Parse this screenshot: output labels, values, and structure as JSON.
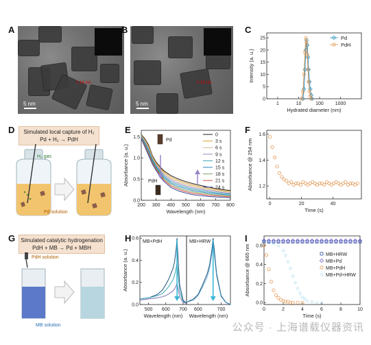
{
  "panels": {
    "A": {
      "letter": "A",
      "scale_label": "5 nm",
      "lattice_label": "0.19 nm"
    },
    "B": {
      "letter": "B",
      "scale_label": "5 nm",
      "lattice_label": "0.19 nm"
    },
    "C": {
      "letter": "C"
    },
    "D": {
      "letter": "D",
      "box_title": "Simulated local capture of H₂",
      "box_eq": "Pd + H₂ → PdH",
      "gas_label": "H₂ gas",
      "solution_label": "Pd solution"
    },
    "E": {
      "letter": "E",
      "pd_label": "Pd",
      "pdh_label": "PdH"
    },
    "F": {
      "letter": "F"
    },
    "G": {
      "letter": "G",
      "box_title": "Simulated catalytic hydrogenation",
      "box_eq": "PdH + MB → Pd + MBH",
      "pdh_solution_label": "PdH solution",
      "mb_solution_label": "MB solution"
    },
    "H": {
      "letter": "H",
      "left_label": "MB+PdH",
      "right_label": "MB+HRW"
    },
    "I": {
      "letter": "I"
    }
  },
  "watermark": "公众号 · 上海谱载仪器资讯",
  "chart_data": [
    {
      "panel": "C",
      "type": "line",
      "xlabel": "Hydrated diameter (nm)",
      "ylabel": "Intensity (a. u.)",
      "x_scale": "log",
      "xlim": [
        0.3,
        10000
      ],
      "ylim": [
        0,
        27
      ],
      "x_ticks": [
        1,
        10,
        100,
        1000
      ],
      "x_tick_labels": [
        "1",
        "10",
        "100",
        "1000"
      ],
      "y_ticks": [
        0,
        5,
        10,
        15,
        20,
        25
      ],
      "legend_position": "top-right",
      "series": [
        {
          "name": "Pd",
          "color": "#2a8fc4",
          "x": [
            16,
            18,
            20,
            22,
            24,
            26,
            28,
            30,
            33,
            36,
            40,
            44
          ],
          "y": [
            0,
            4,
            12,
            20,
            24,
            22,
            17,
            12,
            7,
            4,
            1.5,
            0
          ]
        },
        {
          "name": "PdH",
          "color": "#e39a55",
          "x": [
            14,
            16,
            18,
            20,
            22,
            24,
            26,
            28,
            30,
            33,
            36,
            40
          ],
          "y": [
            0,
            3,
            10,
            19,
            25,
            23,
            18,
            12,
            7,
            3,
            1,
            0
          ]
        }
      ]
    },
    {
      "panel": "E",
      "type": "line",
      "xlabel": "Wavelength (nm)",
      "ylabel": "Absorbance (a. u.)",
      "xlim": [
        200,
        800
      ],
      "ylim": [
        0,
        1.65
      ],
      "x_ticks": [
        200,
        300,
        400,
        500,
        600,
        700,
        800
      ],
      "y_ticks": [
        0.0,
        0.5,
        1.0,
        1.5
      ],
      "legend_position": "top-right",
      "series_names": [
        "0",
        "3 s",
        "6 s",
        "9 s",
        "12 s",
        "15 s",
        "18 s",
        "21 s",
        "24 s"
      ],
      "series_colors": [
        "#1c1c1c",
        "#e0a030",
        "#c9b98b",
        "#9b86c2",
        "#3aa6b0",
        "#2a7fbf",
        "#7aa35d",
        "#d64a3f",
        "#3b4fa0"
      ],
      "x": [
        200,
        225,
        250,
        275,
        300,
        350,
        400,
        450,
        500,
        550,
        600,
        650,
        700,
        750,
        800
      ],
      "base_curve": [
        1.55,
        1.45,
        1.3,
        1.05,
        0.9,
        0.7,
        0.58,
        0.5,
        0.44,
        0.39,
        0.35,
        0.31,
        0.28,
        0.25,
        0.23
      ],
      "end_curve": [
        1.45,
        1.25,
        1.05,
        0.85,
        0.7,
        0.45,
        0.3,
        0.22,
        0.17,
        0.13,
        0.11,
        0.09,
        0.08,
        0.07,
        0.06
      ]
    },
    {
      "panel": "F",
      "type": "scatter",
      "xlabel": "Time (s)",
      "ylabel": "Absorbance @ 254 nm",
      "xlim": [
        -2,
        58
      ],
      "ylim": [
        1.1,
        1.63
      ],
      "x_ticks": [
        0,
        20,
        40
      ],
      "y_ticks": [
        1.2,
        1.4,
        1.6
      ],
      "color": "#e39a55",
      "x": [
        0,
        1.5,
        3,
        4.5,
        6,
        7.5,
        9,
        10.5,
        12,
        13.5,
        15,
        16.5,
        18,
        19.5,
        21,
        22.5,
        24,
        25.5,
        27,
        28.5,
        30,
        31.5,
        33,
        34.5,
        36,
        37.5,
        39,
        40.5,
        42,
        43.5,
        45,
        46.5,
        48,
        49.5,
        51,
        52.5,
        54,
        55.5
      ],
      "y": [
        1.58,
        1.5,
        1.42,
        1.35,
        1.3,
        1.27,
        1.25,
        1.24,
        1.22,
        1.23,
        1.21,
        1.22,
        1.22,
        1.21,
        1.23,
        1.22,
        1.21,
        1.22,
        1.23,
        1.22,
        1.21,
        1.22,
        1.22,
        1.21,
        1.23,
        1.22,
        1.21,
        1.22,
        1.23,
        1.22,
        1.21,
        1.22,
        1.23,
        1.21,
        1.22,
        1.22,
        1.21,
        1.22
      ]
    },
    {
      "panel": "H",
      "type": "line",
      "xlabel": "Wavelength (nm)",
      "ylabel": "Absorbance (a. u.)",
      "subplots": [
        {
          "label": "MB+PdH",
          "xlim": [
            450,
            720
          ],
          "ylim": [
            0,
            0.62
          ],
          "x_ticks": [
            500,
            600,
            700
          ],
          "y_ticks": [
            0.0,
            0.2,
            0.4,
            0.6
          ],
          "x": [
            450,
            500,
            550,
            580,
            600,
            620,
            640,
            650,
            660,
            665,
            670,
            680,
            700,
            720
          ],
          "series": [
            {
              "color": "#1a4f7a",
              "y": [
                0.05,
                0.06,
                0.09,
                0.13,
                0.18,
                0.24,
                0.32,
                0.38,
                0.5,
                0.6,
                0.45,
                0.18,
                0.04,
                0.01
              ]
            },
            {
              "color": "#3aa6b0",
              "y": [
                0.05,
                0.06,
                0.08,
                0.1,
                0.13,
                0.17,
                0.22,
                0.26,
                0.33,
                0.38,
                0.3,
                0.12,
                0.03,
                0.01
              ]
            },
            {
              "color": "#7d6fb5",
              "y": [
                0.04,
                0.05,
                0.06,
                0.07,
                0.08,
                0.1,
                0.12,
                0.14,
                0.17,
                0.19,
                0.15,
                0.07,
                0.02,
                0.01
              ]
            }
          ]
        },
        {
          "label": "MB+HRW",
          "xlim": [
            550,
            740
          ],
          "ylim": [
            0,
            0.62
          ],
          "x_ticks": [
            600,
            700
          ],
          "x": [
            550,
            580,
            600,
            620,
            640,
            650,
            660,
            665,
            670,
            680,
            700,
            720,
            740
          ],
          "series": [
            {
              "color": "#1a4f7a",
              "y": [
                0.02,
                0.05,
                0.09,
                0.18,
                0.28,
                0.36,
                0.5,
                0.6,
                0.5,
                0.28,
                0.08,
                0.02,
                0.0
              ]
            },
            {
              "color": "#2a8fc4",
              "y": [
                0.02,
                0.04,
                0.08,
                0.16,
                0.25,
                0.33,
                0.46,
                0.55,
                0.46,
                0.26,
                0.07,
                0.02,
                0.0
              ]
            }
          ]
        }
      ]
    },
    {
      "panel": "I",
      "type": "scatter",
      "xlabel": "Time (s)",
      "ylabel": "Absorbance @ 665 nm",
      "xlim": [
        0,
        10
      ],
      "ylim": [
        -0.02,
        0.7
      ],
      "x_ticks": [
        0,
        2,
        4,
        6,
        8,
        10
      ],
      "y_ticks": [
        0.0,
        0.2,
        0.4,
        0.6
      ],
      "legend_position": "center-right",
      "series": [
        {
          "name": "MB+HRW",
          "color": "#2a4fa0",
          "marker": "square",
          "x": [
            0,
            0.5,
            1,
            1.5,
            2,
            2.5,
            3,
            3.5,
            4,
            4.5,
            5,
            5.5,
            6,
            6.5,
            7,
            7.5,
            8,
            8.5,
            9,
            9.5,
            10
          ],
          "y": [
            0.64,
            0.64,
            0.64,
            0.64,
            0.64,
            0.64,
            0.64,
            0.64,
            0.64,
            0.64,
            0.64,
            0.64,
            0.64,
            0.64,
            0.64,
            0.64,
            0.64,
            0.64,
            0.64,
            0.64,
            0.64
          ]
        },
        {
          "name": "MB+Pd",
          "color": "#6a5ac4",
          "marker": "diamond",
          "x": [
            0,
            0.5,
            1,
            1.5,
            2,
            2.5,
            3,
            3.5,
            4,
            4.5,
            5,
            5.5,
            6,
            6.5,
            7,
            7.5,
            8,
            8.5,
            9,
            9.5,
            10
          ],
          "y": [
            0.65,
            0.65,
            0.65,
            0.65,
            0.65,
            0.65,
            0.65,
            0.65,
            0.65,
            0.65,
            0.65,
            0.65,
            0.65,
            0.65,
            0.65,
            0.65,
            0.65,
            0.65,
            0.65,
            0.65,
            0.65
          ]
        },
        {
          "name": "MB+PdH",
          "color": "#e39a55",
          "marker": "circle",
          "x": [
            0,
            0.25,
            0.5,
            0.75,
            1,
            1.25,
            1.5,
            1.75,
            2,
            2.25,
            2.5,
            2.75,
            3,
            3.5,
            4
          ],
          "y": [
            0.6,
            0.5,
            0.35,
            0.22,
            0.13,
            0.08,
            0.05,
            0.03,
            0.02,
            0.01,
            0.01,
            0.0,
            0.0,
            0.0,
            0.0
          ]
        },
        {
          "name": "MB+Pd+HRW",
          "color": "#4fb8d6",
          "marker": "star",
          "x": [
            0,
            0.5,
            1,
            1.5,
            2,
            2.25,
            2.5,
            2.75,
            3,
            3.25,
            3.5,
            3.75,
            4,
            4.25,
            4.5,
            5,
            5.5,
            6
          ],
          "y": [
            0.64,
            0.63,
            0.62,
            0.6,
            0.55,
            0.5,
            0.43,
            0.36,
            0.28,
            0.21,
            0.15,
            0.1,
            0.06,
            0.04,
            0.02,
            0.01,
            0.0,
            0.0
          ]
        }
      ]
    }
  ]
}
